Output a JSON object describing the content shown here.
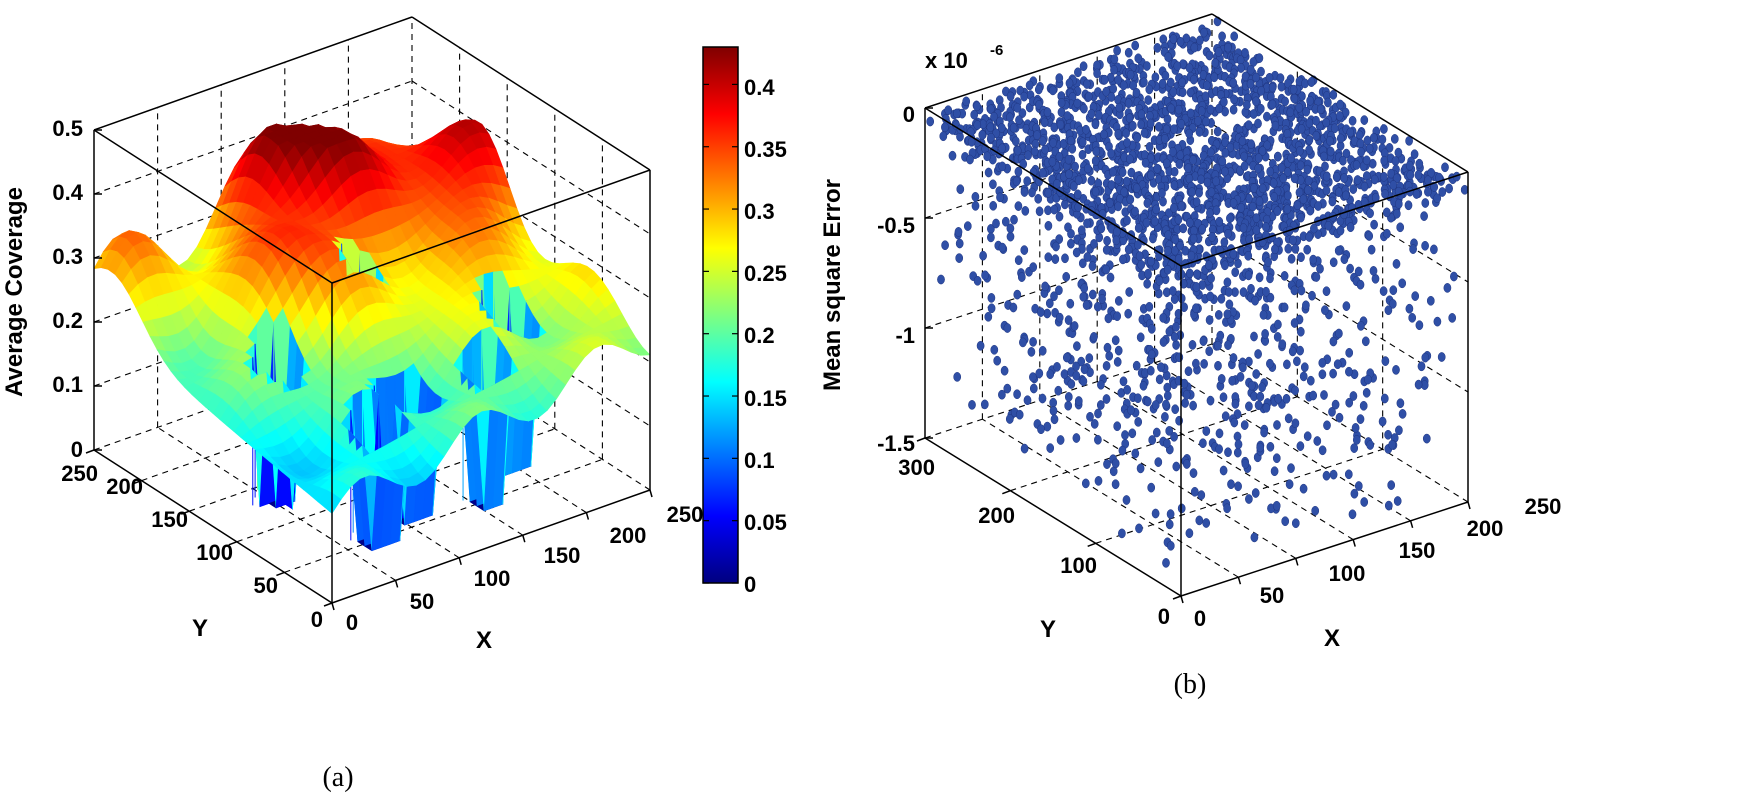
{
  "chart_data": [
    {
      "type": "surface",
      "panel_label": "(a)",
      "xlabel": "X",
      "ylabel": "Y",
      "zlabel": "Average Coverage",
      "x_ticks": [
        "0",
        "50",
        "100",
        "150",
        "200",
        "250"
      ],
      "y_ticks": [
        "0",
        "50",
        "100",
        "150",
        "200",
        "250"
      ],
      "z_ticks": [
        "0",
        "0.1",
        "0.2",
        "0.3",
        "0.4",
        "0.5"
      ],
      "xlim": [
        0,
        250
      ],
      "ylim": [
        0,
        250
      ],
      "zlim": [
        0,
        0.5
      ],
      "grid": true,
      "colormap": "jet",
      "colorbar": {
        "ticks": [
          "0",
          "0.05",
          "0.1",
          "0.15",
          "0.2",
          "0.25",
          "0.3",
          "0.35",
          "0.4"
        ],
        "range": [
          0,
          0.43
        ]
      },
      "jet_colors": [
        "#00007f",
        "#0000ff",
        "#007fff",
        "#00ffff",
        "#7fff7f",
        "#ffff00",
        "#ff7f00",
        "#ff0000",
        "#7f0000"
      ]
    },
    {
      "type": "scatter3d",
      "panel_label": "(b)",
      "xlabel": "X",
      "ylabel": "Y",
      "zlabel": "Mean square Error",
      "scale_label": "x 10",
      "scale_exponent": "-6",
      "x_ticks": [
        "0",
        "50",
        "100",
        "150",
        "200",
        "250"
      ],
      "y_ticks": [
        "0",
        "100",
        "200",
        "300"
      ],
      "z_ticks": [
        "0",
        "-0.5",
        "-1",
        "-1.5"
      ],
      "xlim": [
        0,
        250
      ],
      "ylim": [
        0,
        300
      ],
      "zlim": [
        -1.5,
        0
      ],
      "grid": true,
      "marker_color": "#2f4fa6"
    }
  ]
}
